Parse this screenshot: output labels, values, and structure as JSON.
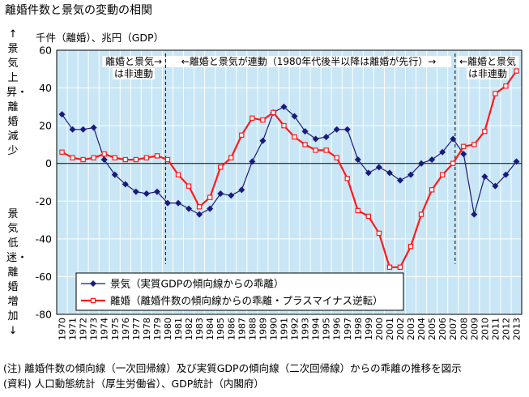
{
  "title": "離婚件数と景気の変動の相関",
  "units_label": "千件（離婚）、兆円（GDP）",
  "side_label_top": "↑景気上昇・離婚減少",
  "side_label_bottom": "景気低迷・離婚増加↓",
  "note_line1": "(注) 離婚件数の傾向線（一次回帰線）及び実質GDPの傾向線（二次回帰線）からの乖離の推移を図示",
  "note_line2": "(資料) 人口動態統計（厚生労働省）、GDP統計（内閣府）",
  "colors": {
    "gdp": "#1a1a7a",
    "divorce": "#ff1a1a",
    "plot_bg": "#c8e6f5",
    "grid": "#ffffff"
  },
  "chart_data": {
    "type": "line",
    "x": [
      1970,
      1971,
      1972,
      1973,
      1974,
      1975,
      1976,
      1977,
      1978,
      1979,
      1980,
      1981,
      1982,
      1983,
      1984,
      1985,
      1986,
      1987,
      1988,
      1989,
      1990,
      1991,
      1992,
      1993,
      1994,
      1995,
      1996,
      1997,
      1998,
      1999,
      2000,
      2001,
      2002,
      2003,
      2004,
      2005,
      2006,
      2007,
      2008,
      2009,
      2010,
      2011,
      2012,
      2013
    ],
    "ylim": [
      -80,
      60
    ],
    "yticks": [
      -80,
      -60,
      -40,
      -20,
      0,
      20,
      40,
      60
    ],
    "grid": true,
    "legend_position": "bottom-left",
    "series": [
      {
        "name": "景気（実質GDPの傾向線からの乖離）",
        "marker": "diamond",
        "values": [
          26,
          18,
          18,
          19,
          2,
          -6,
          -11,
          -15,
          -16,
          -15,
          -21,
          -21,
          -24,
          -27,
          -24,
          -16,
          -17,
          -14,
          1,
          12,
          27,
          30,
          25,
          17,
          13,
          14,
          18,
          18,
          2,
          -5,
          -2,
          -5,
          -9,
          -6,
          0,
          2,
          6,
          13,
          5,
          -27,
          -7,
          -12,
          -6,
          1
        ]
      },
      {
        "name": "離婚（離婚件数の傾向線からの乖離・プラスマイナス逆転）",
        "marker": "square-open",
        "values": [
          6,
          3,
          2,
          3,
          5,
          3,
          2,
          2,
          3,
          4,
          2,
          -6,
          -12,
          -23,
          -18,
          -2,
          3,
          15,
          24,
          23,
          27,
          20,
          14,
          10,
          7,
          7,
          3,
          -8,
          -25,
          -28,
          -37,
          -55,
          -55,
          -44,
          -27,
          -14,
          -6,
          0,
          9,
          10,
          17,
          37,
          41,
          49
        ]
      }
    ],
    "annotations": [
      {
        "text_lines": [
          "離婚と景気→",
          "は非連動"
        ],
        "x_range": [
          1970,
          1979
        ]
      },
      {
        "text_lines": [
          "←離婚と景気が連動（1980年代後半以降は離婚が先行）→"
        ],
        "x_range": [
          1979,
          2007
        ]
      },
      {
        "text_lines": [
          "←離婚と景気",
          "は非連動"
        ],
        "x_range": [
          2007,
          2013
        ]
      }
    ],
    "dividers_x": [
      1979.8,
      2007.2
    ]
  }
}
